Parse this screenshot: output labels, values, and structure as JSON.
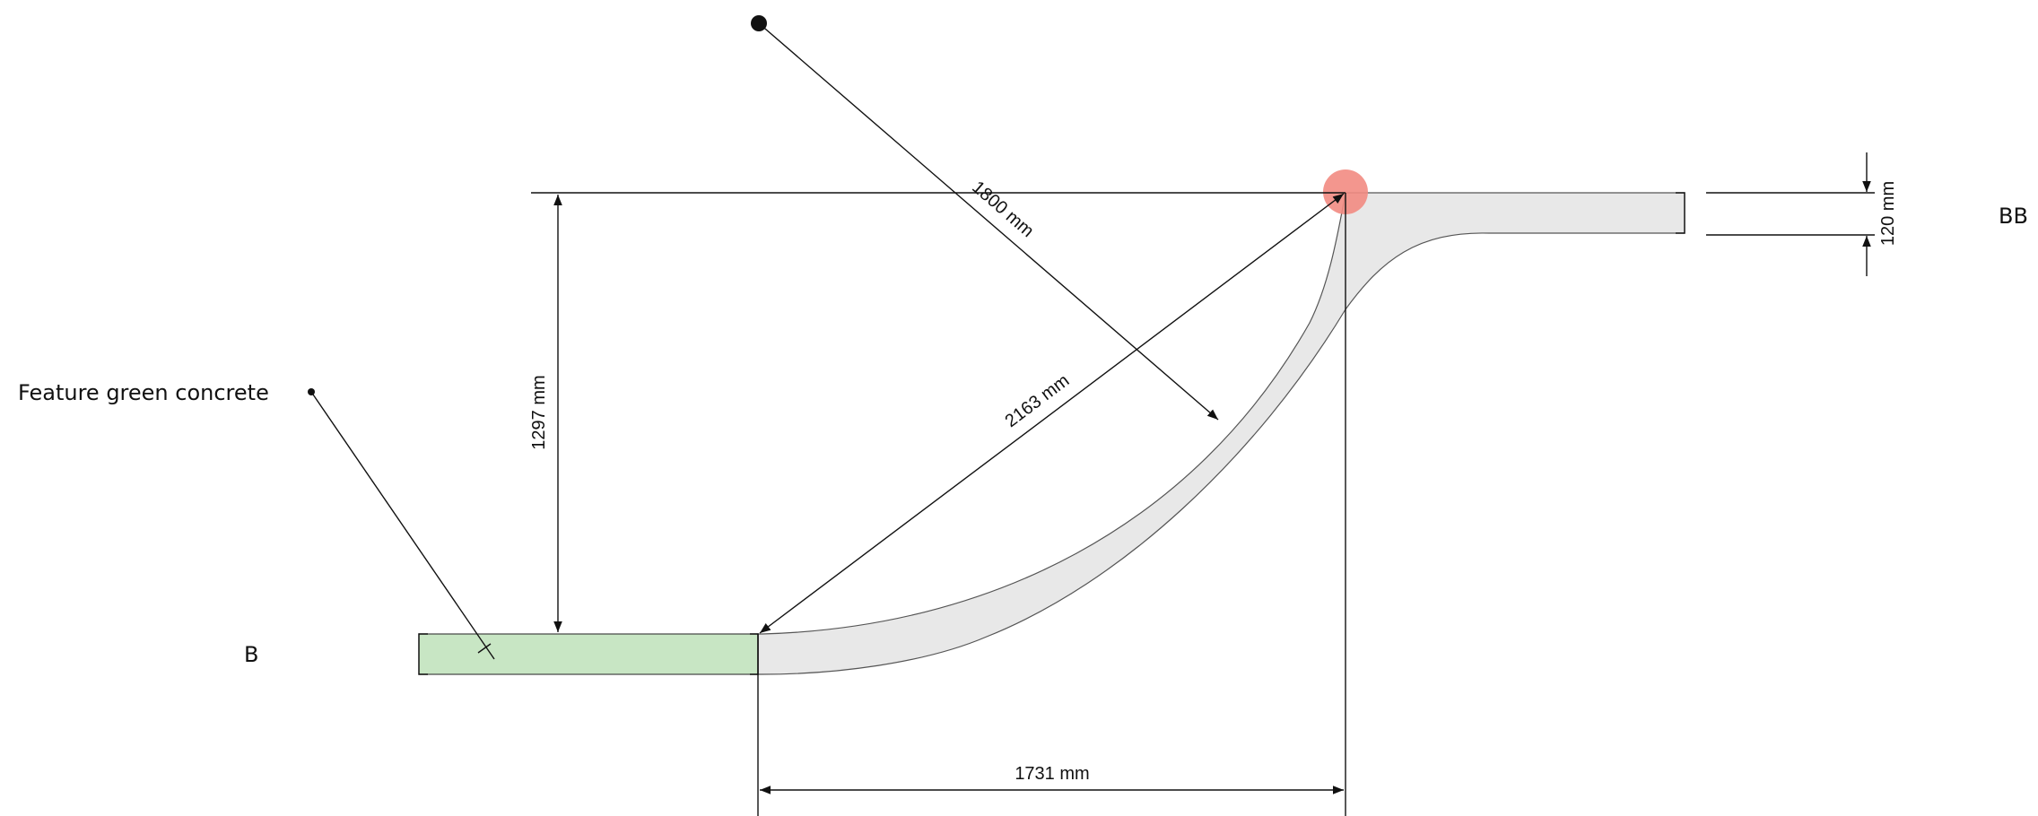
{
  "dimensions": {
    "radius": "1800 mm",
    "diagonal": "2163 mm",
    "vertical": "1297 mm",
    "horizontal": "1731 mm",
    "thickness": "120 mm"
  },
  "labels": {
    "material": "Feature green concrete",
    "section_left": "B",
    "section_right": "BB"
  },
  "colors": {
    "concrete": "#e8e8e8",
    "green_concrete": "#c8e6c4",
    "highlight": "#f28b82",
    "ink": "#111111"
  }
}
